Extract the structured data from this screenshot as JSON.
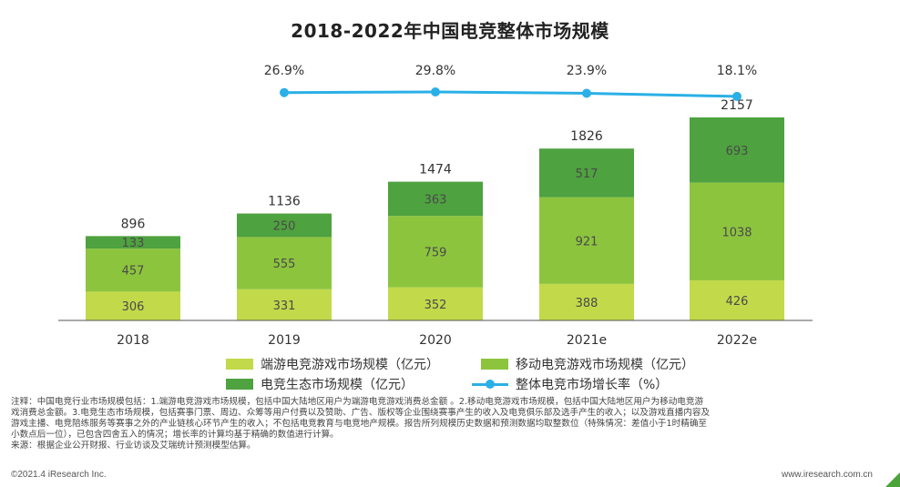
{
  "title": "2018-2022年中国电竞整体市场规模",
  "chart_data": {
    "type": "bar",
    "stacked": true,
    "title": "2018-2022年中国电竞整体市场规模",
    "categories": [
      "2018",
      "2019",
      "2020",
      "2021e",
      "2022e"
    ],
    "series": [
      {
        "name": "端游电竞游戏市场规模（亿元）",
        "color": "#c2d94a",
        "values": [
          306,
          331,
          352,
          388,
          426
        ]
      },
      {
        "name": "移动电竞游戏市场规模（亿元）",
        "color": "#8dc43e",
        "values": [
          457,
          555,
          759,
          921,
          1038
        ]
      },
      {
        "name": "电竞生态市场规模（亿元）",
        "color": "#4ea23f",
        "values": [
          133,
          250,
          363,
          517,
          693
        ]
      }
    ],
    "totals": [
      896,
      1136,
      1474,
      1826,
      2157
    ],
    "line_series": {
      "name": "整体电竞市场增长率（%）",
      "color": "#2ab0e6",
      "points": [
        {
          "category": "2019",
          "value": 26.9,
          "label": "26.9%"
        },
        {
          "category": "2020",
          "value": 29.8,
          "label": "29.8%"
        },
        {
          "category": "2021e",
          "value": 23.9,
          "label": "23.9%"
        },
        {
          "category": "2022e",
          "value": 18.1,
          "label": "18.1%"
        }
      ]
    },
    "ylim": [
      0,
      2300
    ],
    "legend_position": "bottom"
  },
  "notes": [
    "注释：中国电竞行业市场规模包括：1.端游电竞游戏市场规模，包括中国大陆地区用户为端游电竞游戏消费总金额 。2.移动电竞游戏市场规模，包括中国大陆地区用户为移动电竞游",
    "戏消费总金额。3.电竞生态市场规模，包括赛事门票、周边、众筹等用户付费以及赞助、广告、版权等企业围绕赛事产生的收入及电竞俱乐部及选手产生的收入；以及游戏直播内容及",
    "游戏主播、电竞陪练服务等赛事之外的产业链核心环节产生的收入；不包括电竞教育与电竞地产规模。报告所列规模历史数据和预测数据均取整数位（特殊情况：差值小于1时精确至",
    "小数点后一位），已包含四舍五入的情况；增长率的计算均基于精确的数值进行计算。",
    "来源：根据企业公开财报、行业访谈及艾瑞统计预测模型估算。"
  ],
  "footer": {
    "copyright": "©2021.4 iResearch Inc.",
    "website": "www.iresearch.com.cn"
  }
}
